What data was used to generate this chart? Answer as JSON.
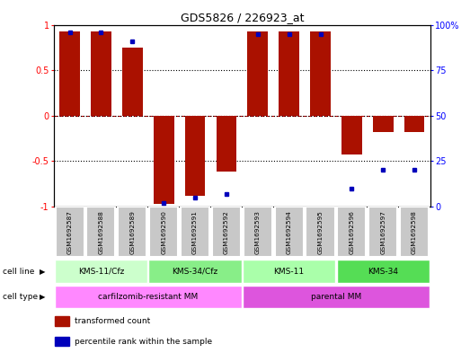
{
  "title": "GDS5826 / 226923_at",
  "samples": [
    "GSM1692587",
    "GSM1692588",
    "GSM1692589",
    "GSM1692590",
    "GSM1692591",
    "GSM1692592",
    "GSM1692593",
    "GSM1692594",
    "GSM1692595",
    "GSM1692596",
    "GSM1692597",
    "GSM1692598"
  ],
  "transformed_count": [
    0.93,
    0.93,
    0.75,
    -0.97,
    -0.88,
    -0.62,
    0.93,
    0.93,
    0.93,
    -0.43,
    -0.18,
    -0.18
  ],
  "percentile_rank_pct": [
    96,
    96,
    91,
    2,
    5,
    7,
    95,
    95,
    95,
    10,
    20,
    20
  ],
  "bar_color": "#AA1100",
  "dot_color": "#0000BB",
  "zero_line_color": "#CC0000",
  "cell_line_groups": [
    {
      "label": "KMS-11/Cfz",
      "start": 0,
      "end": 3,
      "color": "#CCFFCC"
    },
    {
      "label": "KMS-34/Cfz",
      "start": 3,
      "end": 6,
      "color": "#88EE88"
    },
    {
      "label": "KMS-11",
      "start": 6,
      "end": 9,
      "color": "#AAFFAA"
    },
    {
      "label": "KMS-34",
      "start": 9,
      "end": 12,
      "color": "#55DD55"
    }
  ],
  "cell_type_groups": [
    {
      "label": "carfilzomib-resistant MM",
      "start": 0,
      "end": 6,
      "color": "#FF88FF"
    },
    {
      "label": "parental MM",
      "start": 6,
      "end": 12,
      "color": "#DD55DD"
    }
  ],
  "ylim": [
    -1,
    1
  ],
  "y2lim": [
    0,
    100
  ],
  "yticks": [
    -1,
    -0.5,
    0,
    0.5,
    1
  ],
  "ytick_labels": [
    "-1",
    "-0.5",
    "0",
    "0.5",
    "1"
  ],
  "y2ticks": [
    0,
    25,
    50,
    75,
    100
  ],
  "y2tick_labels": [
    "0",
    "25",
    "50",
    "75",
    "100%"
  ],
  "dotted_lines": [
    -0.5,
    0.5
  ],
  "legend_items": [
    {
      "label": "transformed count",
      "color": "#AA1100"
    },
    {
      "label": "percentile rank within the sample",
      "color": "#0000BB"
    }
  ],
  "sample_box_color": "#C8C8C8",
  "sample_box_edge_color": "#FFFFFF"
}
